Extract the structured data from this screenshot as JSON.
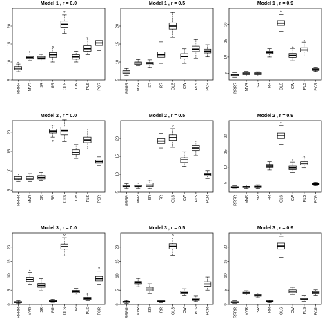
{
  "chart_data": [
    {
      "type": "box",
      "title": "Model 1 , r = 0.0",
      "ylim": [
        5,
        25
      ],
      "yticks": [
        5,
        10,
        15,
        20
      ],
      "ytick_labels": [
        "5",
        "10",
        "15",
        "20"
      ],
      "categories": [
        "RRRR",
        "MVR",
        "SR",
        "RR",
        "OLS",
        "CW",
        "PLS",
        "PCR"
      ],
      "series": [
        {
          "min": 7.3,
          "q1": 7.9,
          "median": 8.3,
          "q3": 8.7,
          "max": 9.4,
          "outliers": [
            9.8
          ]
        },
        {
          "min": 10.4,
          "q1": 10.9,
          "median": 11.2,
          "q3": 11.5,
          "max": 12.2,
          "outliers": [
            12.8
          ]
        },
        {
          "min": 10.3,
          "q1": 10.8,
          "median": 11.1,
          "q3": 11.5,
          "max": 12.1,
          "outliers": []
        },
        {
          "min": 10.0,
          "q1": 11.3,
          "median": 12.0,
          "q3": 12.6,
          "max": 13.9,
          "outliers": [
            14.2
          ]
        },
        {
          "min": 18.0,
          "q1": 19.7,
          "median": 20.5,
          "q3": 21.4,
          "max": 23.1,
          "outliers": [
            24.0
          ]
        },
        {
          "min": 10.0,
          "q1": 10.8,
          "median": 11.4,
          "q3": 12.0,
          "max": 13.0,
          "outliers": []
        },
        {
          "min": 12.0,
          "q1": 13.0,
          "median": 13.7,
          "q3": 14.5,
          "max": 16.4,
          "outliers": [
            16.8
          ]
        },
        {
          "min": 13.2,
          "q1": 14.6,
          "median": 15.3,
          "q3": 16.0,
          "max": 17.8,
          "outliers": []
        }
      ]
    },
    {
      "type": "box",
      "title": "Model 1 , r = 0.5",
      "ylim": [
        5,
        25
      ],
      "yticks": [
        5,
        10,
        15,
        20
      ],
      "ytick_labels": [
        "5",
        "10",
        "15",
        "20"
      ],
      "categories": [
        "RRRR",
        "MVR",
        "SR",
        "RR",
        "OLS",
        "CW",
        "PLS",
        "PCR"
      ],
      "series": [
        {
          "min": 6.3,
          "q1": 6.8,
          "median": 7.2,
          "q3": 7.6,
          "max": 8.2,
          "outliers": []
        },
        {
          "min": 8.9,
          "q1": 9.3,
          "median": 9.7,
          "q3": 10.0,
          "max": 10.7,
          "outliers": []
        },
        {
          "min": 8.5,
          "q1": 9.2,
          "median": 9.6,
          "q3": 9.9,
          "max": 10.6,
          "outliers": []
        },
        {
          "min": 9.6,
          "q1": 11.3,
          "median": 12.0,
          "q3": 12.8,
          "max": 15.6,
          "outliers": []
        },
        {
          "min": 16.9,
          "q1": 19.2,
          "median": 20.0,
          "q3": 20.9,
          "max": 23.8,
          "outliers": []
        },
        {
          "min": 9.6,
          "q1": 10.9,
          "median": 11.5,
          "q3": 12.3,
          "max": 13.7,
          "outliers": []
        },
        {
          "min": 11.0,
          "q1": 12.9,
          "median": 13.6,
          "q3": 14.4,
          "max": 16.3,
          "outliers": []
        },
        {
          "min": 11.4,
          "q1": 12.5,
          "median": 13.0,
          "q3": 13.6,
          "max": 14.8,
          "outliers": []
        }
      ]
    },
    {
      "type": "box",
      "title": "Model 1 , r = 0.9",
      "ylim": [
        3,
        25
      ],
      "yticks": [
        5,
        10,
        15,
        20
      ],
      "ytick_labels": [
        "5",
        "10",
        "15",
        "20"
      ],
      "categories": [
        "RRRR",
        "MVR",
        "SR",
        "RR",
        "OLS",
        "CW",
        "PLS",
        "PCR"
      ],
      "series": [
        {
          "min": 3.8,
          "q1": 4.2,
          "median": 4.5,
          "q3": 4.8,
          "max": 5.2,
          "outliers": []
        },
        {
          "min": 4.2,
          "q1": 4.6,
          "median": 4.9,
          "q3": 5.2,
          "max": 5.6,
          "outliers": []
        },
        {
          "min": 4.2,
          "q1": 4.6,
          "median": 4.9,
          "q3": 5.2,
          "max": 5.5,
          "outliers": []
        },
        {
          "min": 10.0,
          "q1": 10.9,
          "median": 11.3,
          "q3": 11.8,
          "max": 12.6,
          "outliers": []
        },
        {
          "min": 17.9,
          "q1": 19.7,
          "median": 20.4,
          "q3": 21.2,
          "max": 23.0,
          "outliers": [
            24.0
          ]
        },
        {
          "min": 8.9,
          "q1": 9.9,
          "median": 10.5,
          "q3": 11.1,
          "max": 12.7,
          "outliers": [
            13.0
          ]
        },
        {
          "min": 10.3,
          "q1": 11.6,
          "median": 12.2,
          "q3": 12.9,
          "max": 14.6,
          "outliers": [
            15.0
          ]
        },
        {
          "min": 5.6,
          "q1": 5.9,
          "median": 6.2,
          "q3": 6.5,
          "max": 6.9,
          "outliers": []
        }
      ]
    },
    {
      "type": "box",
      "title": "Model 2 , r = 0.0",
      "ylim": [
        4.5,
        23
      ],
      "yticks": [
        5,
        10,
        15,
        20
      ],
      "ytick_labels": [
        "5",
        "10",
        "15",
        "20"
      ],
      "categories": [
        "RRRR",
        "MVR",
        "SR",
        "RR",
        "OLS",
        "CW",
        "PLS",
        "PCR"
      ],
      "series": [
        {
          "min": 7.3,
          "q1": 7.8,
          "median": 8.1,
          "q3": 8.5,
          "max": 9.2,
          "outliers": []
        },
        {
          "min": 7.3,
          "q1": 7.8,
          "median": 8.1,
          "q3": 8.5,
          "max": 9.3,
          "outliers": []
        },
        {
          "min": 7.4,
          "q1": 7.9,
          "median": 8.3,
          "q3": 8.8,
          "max": 9.6,
          "outliers": []
        },
        {
          "min": 18.7,
          "q1": 19.8,
          "median": 20.3,
          "q3": 20.8,
          "max": 21.8,
          "outliers": [
            17.8
          ]
        },
        {
          "min": 17.6,
          "q1": 19.3,
          "median": 20.4,
          "q3": 21.3,
          "max": 23.2,
          "outliers": []
        },
        {
          "min": 13.2,
          "q1": 14.2,
          "median": 14.8,
          "q3": 15.4,
          "max": 16.8,
          "outliers": []
        },
        {
          "min": 15.6,
          "q1": 17.3,
          "median": 18.0,
          "q3": 18.7,
          "max": 20.8,
          "outliers": []
        },
        {
          "min": 11.4,
          "q1": 12.0,
          "median": 12.4,
          "q3": 12.8,
          "max": 13.6,
          "outliers": []
        }
      ]
    },
    {
      "type": "box",
      "title": "Model 2 , r = 0.5",
      "ylim": [
        5,
        25
      ],
      "yticks": [
        5,
        10,
        15,
        20
      ],
      "ytick_labels": [
        "5",
        "10",
        "15",
        "20"
      ],
      "categories": [
        "RRRR",
        "MVR",
        "SR",
        "RR",
        "OLS",
        "CW",
        "PLS",
        "PCR"
      ],
      "series": [
        {
          "min": 6.0,
          "q1": 6.4,
          "median": 6.7,
          "q3": 7.0,
          "max": 7.4,
          "outliers": []
        },
        {
          "min": 6.0,
          "q1": 6.4,
          "median": 6.7,
          "q3": 7.0,
          "max": 7.6,
          "outliers": []
        },
        {
          "min": 6.0,
          "q1": 6.6,
          "median": 7.0,
          "q3": 7.6,
          "max": 8.3,
          "outliers": []
        },
        {
          "min": 17.3,
          "q1": 18.6,
          "median": 19.3,
          "q3": 19.9,
          "max": 21.4,
          "outliers": []
        },
        {
          "min": 17.5,
          "q1": 19.5,
          "median": 20.2,
          "q3": 21.0,
          "max": 22.7,
          "outliers": [
            23.6
          ]
        },
        {
          "min": 12.2,
          "q1": 13.3,
          "median": 14.0,
          "q3": 14.6,
          "max": 16.3,
          "outliers": []
        },
        {
          "min": 15.2,
          "q1": 16.6,
          "median": 17.3,
          "q3": 18.0,
          "max": 19.3,
          "outliers": []
        },
        {
          "min": 8.8,
          "q1": 9.5,
          "median": 9.9,
          "q3": 10.3,
          "max": 11.0,
          "outliers": []
        }
      ]
    },
    {
      "type": "box",
      "title": "Model 2 , r = 0.9",
      "ylim": [
        2,
        25
      ],
      "yticks": [
        5,
        10,
        15,
        20
      ],
      "ytick_labels": [
        "5",
        "10",
        "15",
        "20"
      ],
      "categories": [
        "RRRR",
        "MVR",
        "SR",
        "RR",
        "OLS",
        "CW",
        "PLS",
        "PCR"
      ],
      "series": [
        {
          "min": 3.1,
          "q1": 3.4,
          "median": 3.6,
          "q3": 3.8,
          "max": 4.1,
          "outliers": []
        },
        {
          "min": 3.2,
          "q1": 3.5,
          "median": 3.7,
          "q3": 3.9,
          "max": 4.3,
          "outliers": []
        },
        {
          "min": 3.2,
          "q1": 3.5,
          "median": 3.8,
          "q3": 4.0,
          "max": 4.4,
          "outliers": []
        },
        {
          "min": 9.1,
          "q1": 9.9,
          "median": 10.4,
          "q3": 10.9,
          "max": 11.8,
          "outliers": []
        },
        {
          "min": 17.4,
          "q1": 19.2,
          "median": 20.1,
          "q3": 21.0,
          "max": 23.4,
          "outliers": [
            24.3
          ]
        },
        {
          "min": 8.3,
          "q1": 9.2,
          "median": 9.8,
          "q3": 10.4,
          "max": 11.7,
          "outliers": [
            12.3
          ]
        },
        {
          "min": 9.8,
          "q1": 10.8,
          "median": 11.3,
          "q3": 11.8,
          "max": 13.0,
          "outliers": [
            13.4
          ]
        },
        {
          "min": 4.1,
          "q1": 4.4,
          "median": 4.6,
          "q3": 4.8,
          "max": 5.2,
          "outliers": []
        }
      ]
    },
    {
      "type": "box",
      "title": "Model 3 , r = 0.0",
      "ylim": [
        0,
        25
      ],
      "yticks": [
        0,
        5,
        10,
        15,
        20
      ],
      "ytick_labels": [
        "0",
        "5",
        "10",
        "15",
        "20"
      ],
      "categories": [
        "RRRR",
        "MVR",
        "SR",
        "RR",
        "OLS",
        "CW",
        "PLS",
        "PCR"
      ],
      "series": [
        {
          "min": 0.3,
          "q1": 0.6,
          "median": 0.8,
          "q3": 1.0,
          "max": 1.3,
          "outliers": []
        },
        {
          "min": 6.8,
          "q1": 8.0,
          "median": 8.7,
          "q3": 9.5,
          "max": 11.2,
          "outliers": [
            11.8
          ]
        },
        {
          "min": 4.8,
          "q1": 6.0,
          "median": 6.6,
          "q3": 7.3,
          "max": 9.0,
          "outliers": []
        },
        {
          "min": 0.7,
          "q1": 1.0,
          "median": 1.2,
          "q3": 1.5,
          "max": 1.8,
          "outliers": []
        },
        {
          "min": 17.0,
          "q1": 19.3,
          "median": 20.2,
          "q3": 21.1,
          "max": 23.3,
          "outliers": [
            24.4
          ]
        },
        {
          "min": 3.3,
          "q1": 4.0,
          "median": 4.4,
          "q3": 4.9,
          "max": 5.6,
          "outliers": []
        },
        {
          "min": 1.3,
          "q1": 1.8,
          "median": 2.1,
          "q3": 2.5,
          "max": 3.2,
          "outliers": [
            3.6
          ]
        },
        {
          "min": 6.8,
          "q1": 8.2,
          "median": 9.0,
          "q3": 9.8,
          "max": 11.6,
          "outliers": [
            12.8
          ]
        }
      ]
    },
    {
      "type": "box",
      "title": "Model 3 , r = 0.5",
      "ylim": [
        0,
        25
      ],
      "yticks": [
        0,
        5,
        10,
        15,
        20
      ],
      "ytick_labels": [
        "0",
        "5",
        "10",
        "15",
        "20"
      ],
      "categories": [
        "RRRR",
        "MVR",
        "SR",
        "RR",
        "OLS",
        "CW",
        "PLS",
        "PCR"
      ],
      "series": [
        {
          "min": 0.4,
          "q1": 0.7,
          "median": 0.9,
          "q3": 1.1,
          "max": 1.4,
          "outliers": []
        },
        {
          "min": 6.2,
          "q1": 7.0,
          "median": 7.5,
          "q3": 8.0,
          "max": 9.1,
          "outliers": []
        },
        {
          "min": 3.8,
          "q1": 4.8,
          "median": 5.4,
          "q3": 6.0,
          "max": 7.2,
          "outliers": []
        },
        {
          "min": 0.6,
          "q1": 0.9,
          "median": 1.1,
          "q3": 1.3,
          "max": 1.6,
          "outliers": []
        },
        {
          "min": 17.2,
          "q1": 19.4,
          "median": 20.3,
          "q3": 21.2,
          "max": 23.2,
          "outliers": [
            24.2
          ]
        },
        {
          "min": 3.0,
          "q1": 3.7,
          "median": 4.2,
          "q3": 4.7,
          "max": 5.5,
          "outliers": []
        },
        {
          "min": 1.0,
          "q1": 1.4,
          "median": 1.8,
          "q3": 2.2,
          "max": 2.9,
          "outliers": []
        },
        {
          "min": 5.0,
          "q1": 6.4,
          "median": 7.1,
          "q3": 7.9,
          "max": 9.6,
          "outliers": []
        }
      ]
    },
    {
      "type": "box",
      "title": "Model 3 , r = 0.9",
      "ylim": [
        0,
        25
      ],
      "yticks": [
        0,
        5,
        10,
        15,
        20
      ],
      "ytick_labels": [
        "0",
        "5",
        "10",
        "15",
        "20"
      ],
      "categories": [
        "RRRR",
        "MVR",
        "SR",
        "RR",
        "OLS",
        "CW",
        "PLS",
        "PCR"
      ],
      "series": [
        {
          "min": 0.4,
          "q1": 0.6,
          "median": 0.8,
          "q3": 1.0,
          "max": 1.3,
          "outliers": []
        },
        {
          "min": 3.3,
          "q1": 3.7,
          "median": 4.0,
          "q3": 4.3,
          "max": 4.8,
          "outliers": []
        },
        {
          "min": 2.4,
          "q1": 2.9,
          "median": 3.2,
          "q3": 3.5,
          "max": 4.0,
          "outliers": []
        },
        {
          "min": 0.6,
          "q1": 0.9,
          "median": 1.1,
          "q3": 1.3,
          "max": 1.6,
          "outliers": []
        },
        {
          "min": 16.5,
          "q1": 19.3,
          "median": 20.4,
          "q3": 21.4,
          "max": 23.8,
          "outliers": [
            24.6
          ]
        },
        {
          "min": 3.4,
          "q1": 4.1,
          "median": 4.6,
          "q3": 5.1,
          "max": 6.0,
          "outliers": []
        },
        {
          "min": 1.1,
          "q1": 1.6,
          "median": 1.9,
          "q3": 2.3,
          "max": 3.0,
          "outliers": []
        },
        {
          "min": 3.0,
          "q1": 3.7,
          "median": 4.1,
          "q3": 4.5,
          "max": 5.1,
          "outliers": []
        }
      ]
    }
  ]
}
